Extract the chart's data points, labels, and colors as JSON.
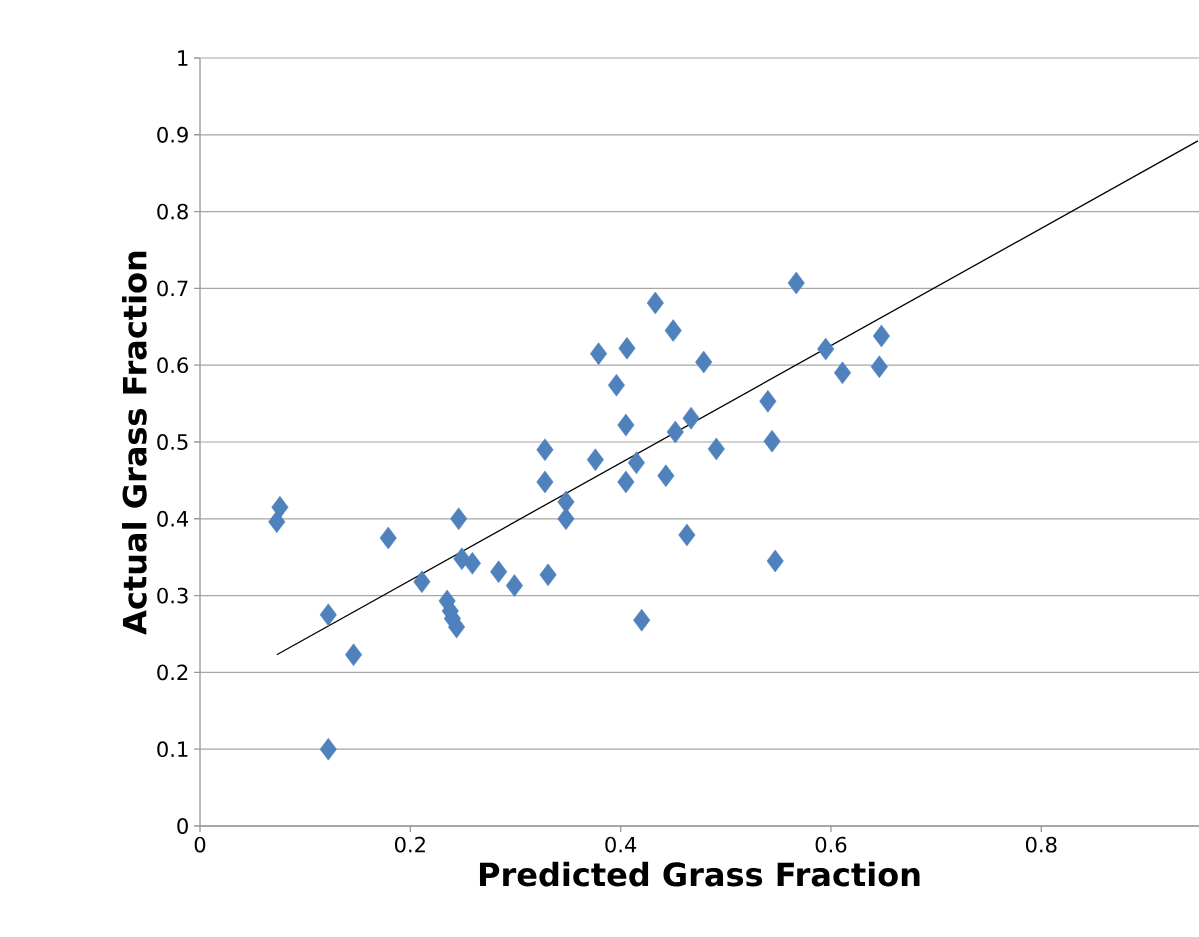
{
  "chart_data": {
    "type": "scatter",
    "xlabel": "Predicted Grass Fraction",
    "ylabel": "Actual Grass Fraction",
    "xlim": [
      0,
      0.95
    ],
    "ylim": [
      0,
      1
    ],
    "xticks": [
      0,
      0.2,
      0.4,
      0.6,
      0.8
    ],
    "yticks": [
      0,
      0.1,
      0.2,
      0.3,
      0.4,
      0.5,
      0.6,
      0.7,
      0.8,
      0.9,
      1
    ],
    "grid": "y",
    "series": [
      {
        "color": "#4f81bd",
        "marker": "diamond",
        "x": [
          0.076,
          0.073,
          0.122,
          0.122,
          0.146,
          0.179,
          0.211,
          0.235,
          0.238,
          0.24,
          0.244,
          0.246,
          0.249,
          0.259,
          0.284,
          0.299,
          0.328,
          0.328,
          0.331,
          0.348,
          0.348,
          0.376,
          0.379,
          0.396,
          0.406,
          0.405,
          0.405,
          0.415,
          0.42,
          0.433,
          0.443,
          0.45,
          0.452,
          0.463,
          0.467,
          0.479,
          0.491,
          0.54,
          0.544,
          0.547,
          0.567,
          0.595,
          0.611,
          0.646,
          0.648
        ],
        "values": [
          0.415,
          0.396,
          0.275,
          0.1,
          0.223,
          0.375,
          0.318,
          0.293,
          0.28,
          0.27,
          0.259,
          0.4,
          0.348,
          0.342,
          0.331,
          0.313,
          0.49,
          0.448,
          0.327,
          0.422,
          0.4,
          0.477,
          0.615,
          0.574,
          0.622,
          0.522,
          0.448,
          0.473,
          0.268,
          0.681,
          0.456,
          0.645,
          0.513,
          0.379,
          0.531,
          0.604,
          0.491,
          0.553,
          0.501,
          0.345,
          0.707,
          0.621,
          0.59,
          0.598,
          0.638
        ]
      },
      {
        "type": "line",
        "color": "#000000",
        "marker": "none",
        "x": [
          0.073,
          0.949
        ],
        "values": [
          0.223,
          0.892
        ]
      }
    ]
  }
}
